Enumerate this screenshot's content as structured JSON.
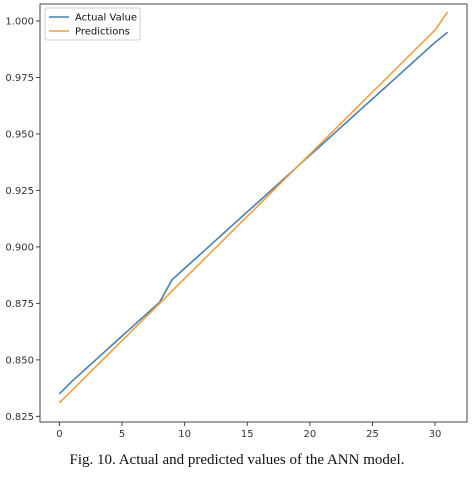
{
  "caption": "Fig. 10. Actual and predicted values of the ANN model.",
  "colors": {
    "actual": "#4a7fb0",
    "predictions": "#f0a040"
  },
  "chart_data": {
    "type": "line",
    "title": "",
    "xlabel": "",
    "ylabel": "",
    "xlim": [
      -1.55,
      32.55
    ],
    "ylim": [
      0.8225,
      1.0075
    ],
    "x_ticks": [
      0,
      5,
      10,
      15,
      20,
      25,
      30
    ],
    "y_ticks": [
      0.825,
      0.85,
      0.875,
      0.9,
      0.925,
      0.95,
      0.975,
      1.0
    ],
    "y_tick_labels": [
      "0.825",
      "0.850",
      "0.875",
      "0.900",
      "0.925",
      "0.950",
      "0.975",
      "1.000"
    ],
    "grid": false,
    "legend_position": "top-left",
    "series": [
      {
        "name": "Actual Value",
        "color": "#4a7fb0",
        "x": [
          0,
          1,
          2,
          3,
          4,
          5,
          6,
          7,
          8,
          9,
          10,
          11,
          12,
          13,
          14,
          15,
          16,
          17,
          18,
          19,
          20,
          21,
          22,
          23,
          24,
          25,
          26,
          27,
          28,
          29,
          30,
          31
        ],
        "values": [
          0.835,
          0.8405,
          0.8455,
          0.8505,
          0.8555,
          0.8605,
          0.8655,
          0.8705,
          0.8755,
          0.8855,
          0.8905,
          0.8955,
          0.9005,
          0.9055,
          0.9105,
          0.9155,
          0.9205,
          0.9255,
          0.9305,
          0.9355,
          0.9405,
          0.9455,
          0.9505,
          0.9555,
          0.9605,
          0.9655,
          0.9705,
          0.9755,
          0.9805,
          0.9855,
          0.9905,
          0.995
        ]
      },
      {
        "name": "Predictions",
        "color": "#f0a040",
        "x": [
          0,
          1,
          2,
          3,
          4,
          5,
          6,
          7,
          8,
          9,
          10,
          11,
          12,
          13,
          14,
          15,
          16,
          17,
          18,
          19,
          20,
          21,
          22,
          23,
          24,
          25,
          26,
          27,
          28,
          29,
          30,
          31
        ],
        "values": [
          0.831,
          0.8365,
          0.842,
          0.8475,
          0.853,
          0.8585,
          0.864,
          0.8695,
          0.875,
          0.8805,
          0.886,
          0.8915,
          0.897,
          0.9025,
          0.908,
          0.9135,
          0.919,
          0.9245,
          0.93,
          0.9355,
          0.941,
          0.9465,
          0.952,
          0.9575,
          0.963,
          0.9685,
          0.974,
          0.9795,
          0.985,
          0.9905,
          0.996,
          1.004
        ]
      }
    ]
  }
}
